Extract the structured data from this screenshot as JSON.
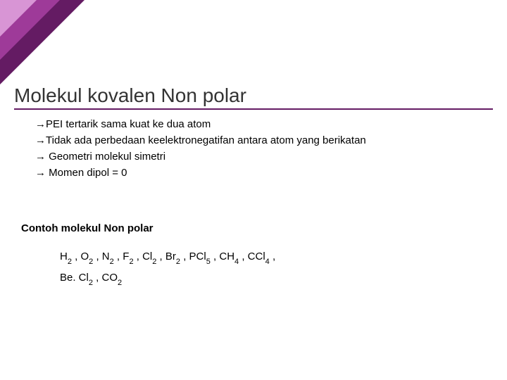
{
  "decoration": {
    "outer_color": "#641b63",
    "mid_color": "#9e3a99",
    "inner_color": "#d895d5"
  },
  "title": "Molekul kovalen Non polar",
  "title_underline_color": "#641b63",
  "bullets": [
    "PEI tertarik sama kuat ke dua atom",
    "Tidak ada perbedaan keelektronegatifan antara atom yang berikatan",
    " Geometri molekul simetri",
    " Momen dipol = 0"
  ],
  "arrow_char": "→",
  "subtitle": "Contoh molekul Non polar",
  "examples_line1_parts": [
    {
      "base": "H",
      "sub": "2"
    },
    {
      "base": "O",
      "sub": "2"
    },
    {
      "base": "N",
      "sub": "2"
    },
    {
      "base": "F",
      "sub": "2"
    },
    {
      "base": "Cl",
      "sub": "2"
    },
    {
      "base": "Br",
      "sub": "2"
    },
    {
      "base": "PCl",
      "sub": "5"
    },
    {
      "base": "CH",
      "sub": "4"
    },
    {
      "base": "CCl",
      "sub": "4"
    }
  ],
  "examples_line2_parts": [
    {
      "base": "Be. Cl",
      "sub": "2"
    },
    {
      "base": "CO",
      "sub": "2"
    }
  ],
  "text_color": "#000000",
  "background_color": "#ffffff"
}
